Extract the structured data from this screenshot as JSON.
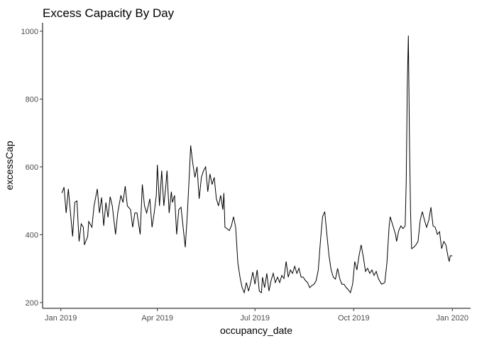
{
  "chart_data": {
    "type": "line",
    "title": "Excess Capacity By Day",
    "x_label": "occupancy_date",
    "y_label": "excessCap",
    "x": [
      1,
      3,
      5,
      7,
      9,
      11,
      13,
      15,
      17,
      19,
      21,
      22,
      25,
      26,
      29,
      31,
      34,
      36,
      38,
      40,
      42,
      44,
      46,
      48,
      51,
      53,
      56,
      58,
      60,
      62,
      65,
      67,
      69,
      71,
      74,
      76,
      78,
      80,
      83,
      85,
      87,
      89,
      90,
      92,
      94,
      96,
      98,
      99,
      101,
      103,
      104,
      106,
      108,
      110,
      112,
      114,
      116,
      118,
      120,
      121,
      123,
      125,
      127,
      129,
      131,
      133,
      135,
      137,
      139,
      141,
      143,
      145,
      147,
      149,
      151,
      152,
      153,
      155,
      157,
      159,
      161,
      163,
      165,
      167,
      169,
      171,
      173,
      175,
      177,
      179,
      181,
      183,
      185,
      187,
      188,
      190,
      192,
      194,
      196,
      198,
      200,
      202,
      204,
      206,
      208,
      210,
      212,
      214,
      216,
      218,
      220,
      222,
      224,
      226,
      228,
      230,
      232,
      234,
      236,
      238,
      240,
      242,
      244,
      246,
      248,
      250,
      252,
      254,
      256,
      258,
      260,
      262,
      264,
      266,
      268,
      270,
      272,
      274,
      276,
      278,
      280,
      282,
      284,
      286,
      288,
      290,
      292,
      294,
      296,
      298,
      299,
      302,
      304,
      306,
      307,
      310,
      312,
      313,
      315,
      317,
      319,
      321,
      322,
      323,
      324,
      325,
      326,
      327,
      329,
      331,
      333,
      335,
      337,
      339,
      341,
      343,
      345,
      347,
      349,
      351,
      353,
      355,
      357,
      359,
      361,
      362,
      363,
      365
    ],
    "series": [
      {
        "name": "excessCap",
        "color": "#000000",
        "values": [
          523,
          540,
          464,
          535,
          464,
          395,
          495,
          500,
          380,
          432,
          422,
          370,
          395,
          439,
          422,
          485,
          535,
          464,
          510,
          426,
          495,
          451,
          512,
          485,
          401,
          464,
          516,
          495,
          543,
          485,
          474,
          422,
          464,
          464,
          401,
          548,
          485,
          464,
          506,
          422,
          464,
          516,
          606,
          485,
          589,
          485,
          548,
          589,
          464,
          527,
          495,
          516,
          401,
          474,
          481,
          422,
          363,
          464,
          589,
          663,
          610,
          569,
          600,
          506,
          569,
          589,
          600,
          527,
          579,
          548,
          569,
          506,
          485,
          516,
          474,
          523,
          422,
          418,
          412,
          426,
          453,
          422,
          317,
          275,
          244,
          229,
          259,
          234,
          259,
          290,
          254,
          296,
          234,
          229,
          275,
          244,
          286,
          234,
          265,
          286,
          259,
          275,
          259,
          280,
          271,
          321,
          275,
          296,
          286,
          307,
          286,
          301,
          275,
          275,
          265,
          259,
          244,
          250,
          254,
          265,
          296,
          380,
          453,
          468,
          401,
          338,
          296,
          275,
          269,
          301,
          271,
          254,
          254,
          244,
          238,
          229,
          254,
          321,
          296,
          338,
          370,
          334,
          292,
          301,
          286,
          296,
          280,
          292,
          271,
          259,
          254,
          259,
          317,
          422,
          453,
          422,
          401,
          380,
          412,
          426,
          418,
          426,
          558,
          843,
          987,
          673,
          464,
          359,
          363,
          370,
          380,
          443,
          468,
          443,
          422,
          443,
          481,
          426,
          422,
          401,
          409,
          359,
          380,
          370,
          334,
          321,
          338,
          338
        ]
      }
    ],
    "xlim": [
      -17,
      382
    ],
    "ylim": [
      183,
      1025
    ],
    "xticks": [
      {
        "value": 0,
        "label": "Jan 2019"
      },
      {
        "value": 90,
        "label": "Apr 2019"
      },
      {
        "value": 181,
        "label": "Jul 2019"
      },
      {
        "value": 273,
        "label": "Oct 2019"
      },
      {
        "value": 365,
        "label": "Jan 2020"
      }
    ],
    "yticks": [
      200,
      400,
      600,
      800,
      1000
    ]
  }
}
